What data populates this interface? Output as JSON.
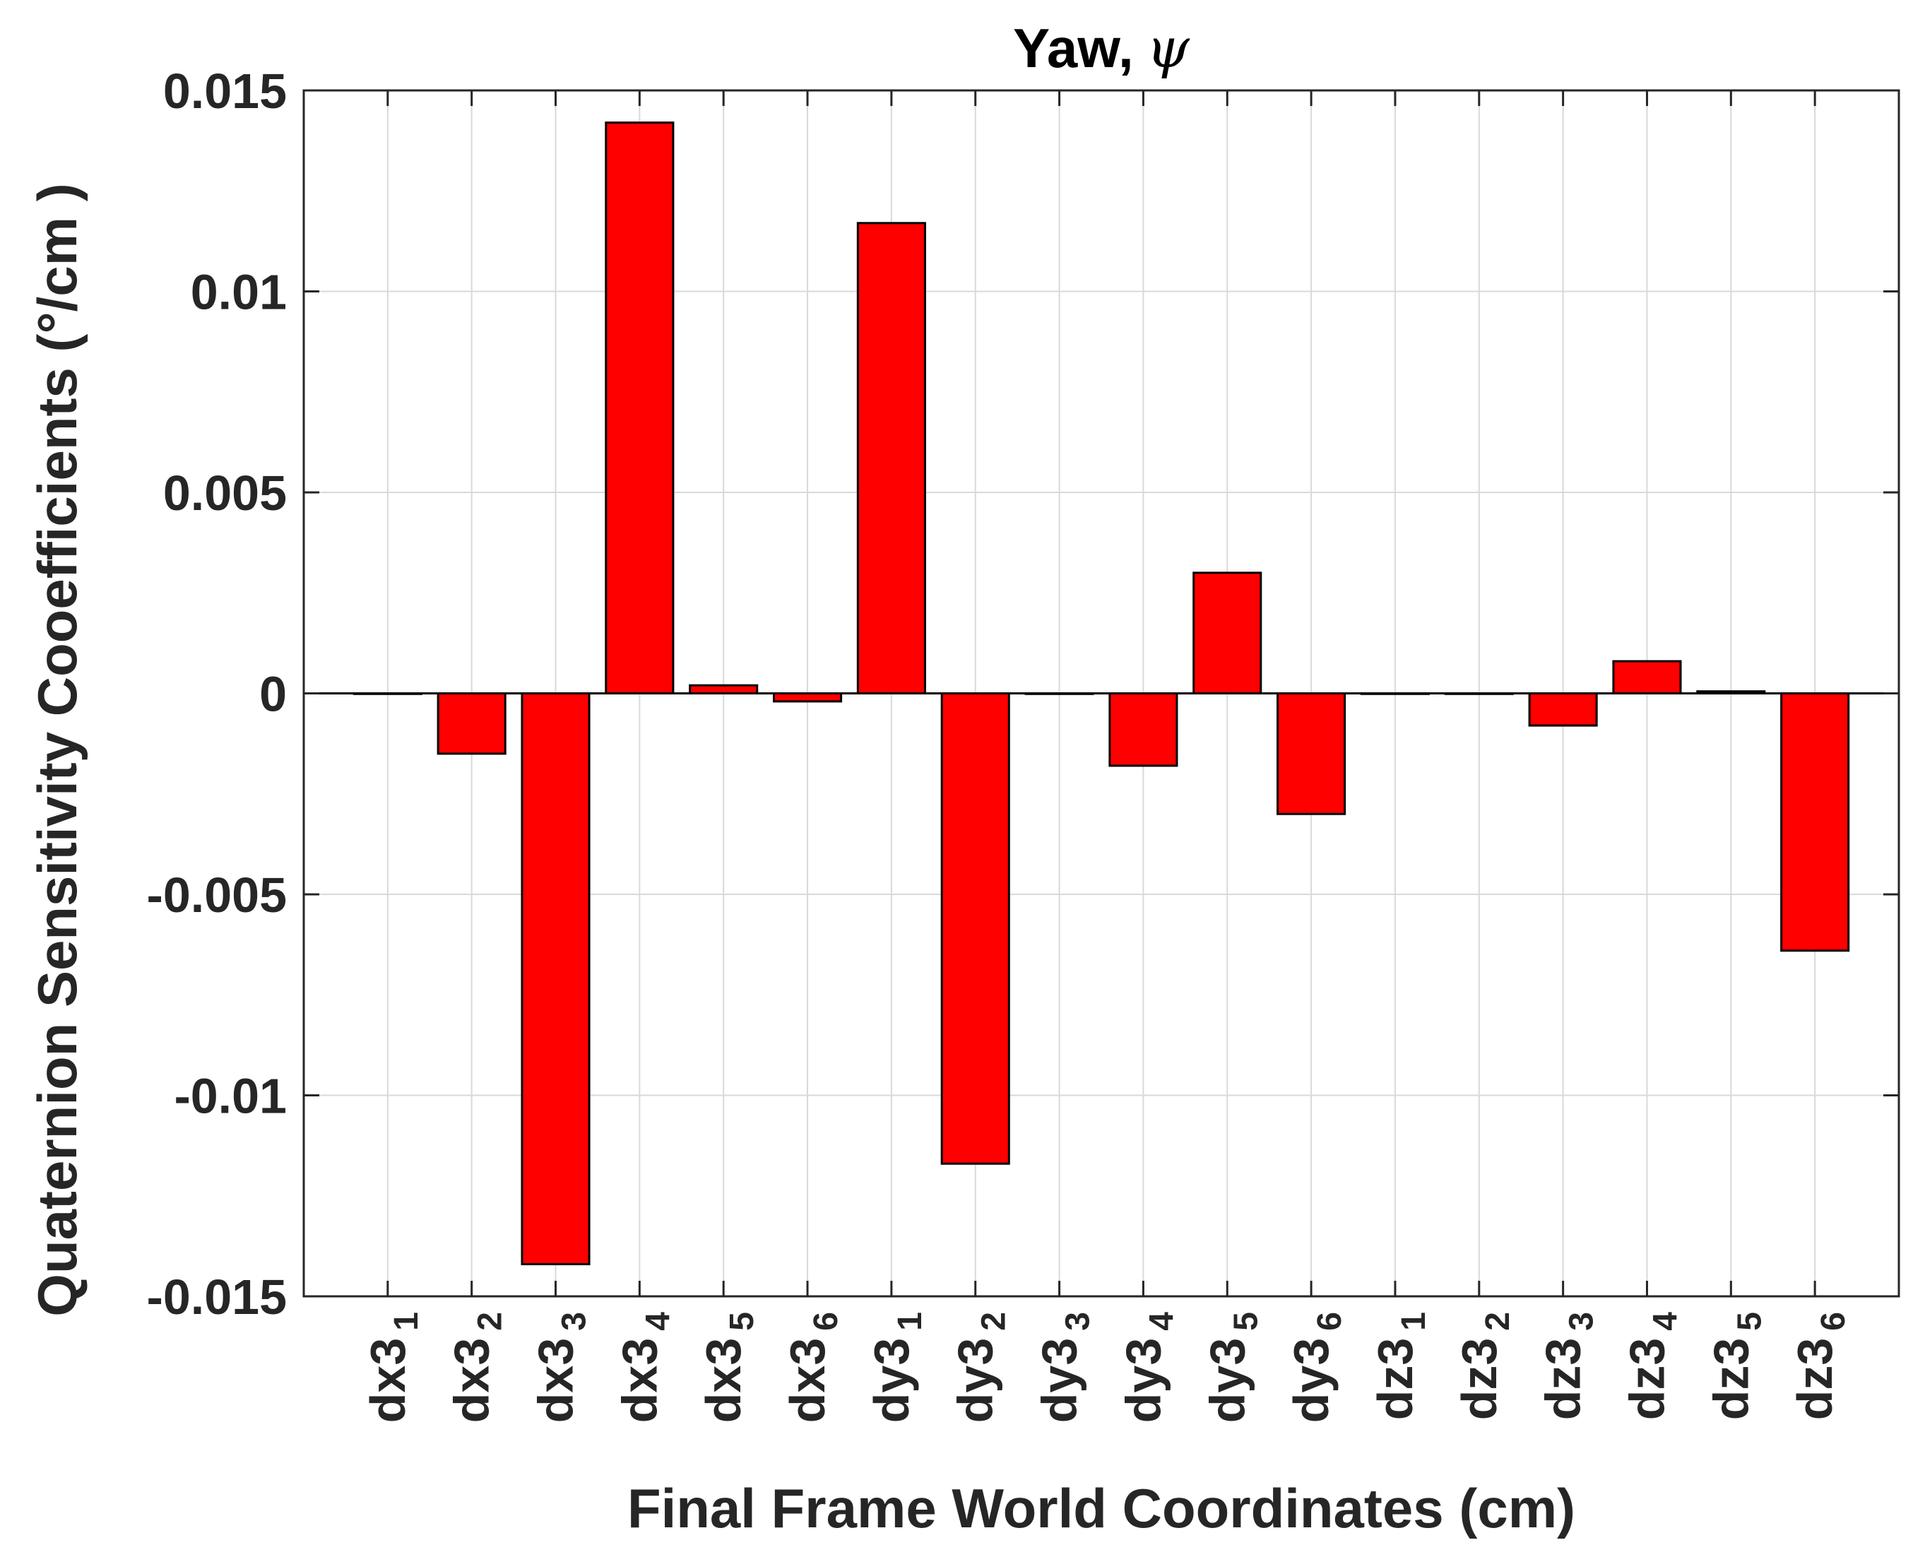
{
  "chart_data": {
    "type": "bar",
    "title": "Yaw,",
    "title_symbol": "ψ",
    "xlabel": "Final Frame World Coordinates (cm)",
    "ylabel": "Quaternion Sensitivity Cooefficients (°/cm )",
    "ylim": [
      -0.015,
      0.015
    ],
    "yticks": [
      {
        "value": 0.015,
        "label": "0.015"
      },
      {
        "value": 0.01,
        "label": "0.01"
      },
      {
        "value": 0.005,
        "label": "0.005"
      },
      {
        "value": 0,
        "label": "0"
      },
      {
        "value": -0.005,
        "label": "-0.005"
      },
      {
        "value": -0.01,
        "label": "-0.01"
      },
      {
        "value": -0.015,
        "label": "-0.015"
      }
    ],
    "grid": true,
    "categories": [
      {
        "base": "dx3",
        "sub": "1"
      },
      {
        "base": "dx3",
        "sub": "2"
      },
      {
        "base": "dx3",
        "sub": "3"
      },
      {
        "base": "dx3",
        "sub": "4"
      },
      {
        "base": "dx3",
        "sub": "5"
      },
      {
        "base": "dx3",
        "sub": "6"
      },
      {
        "base": "dy3",
        "sub": "1"
      },
      {
        "base": "dy3",
        "sub": "2"
      },
      {
        "base": "dy3",
        "sub": "3"
      },
      {
        "base": "dy3",
        "sub": "4"
      },
      {
        "base": "dy3",
        "sub": "5"
      },
      {
        "base": "dy3",
        "sub": "6"
      },
      {
        "base": "dz3",
        "sub": "1"
      },
      {
        "base": "dz3",
        "sub": "2"
      },
      {
        "base": "dz3",
        "sub": "3"
      },
      {
        "base": "dz3",
        "sub": "4"
      },
      {
        "base": "dz3",
        "sub": "5"
      },
      {
        "base": "dz3",
        "sub": "6"
      }
    ],
    "values": [
      0,
      -0.0015,
      -0.0142,
      0.0142,
      0.0002,
      -0.0002,
      0.0117,
      -0.0117,
      0,
      -0.0018,
      0.003,
      -0.003,
      0,
      0,
      -0.0008,
      0.0008,
      5e-05,
      -0.0064
    ],
    "colors": {
      "bar": "#ff0000",
      "edge": "#000000",
      "grid": "#d9d9d9",
      "axis": "#262626"
    }
  }
}
